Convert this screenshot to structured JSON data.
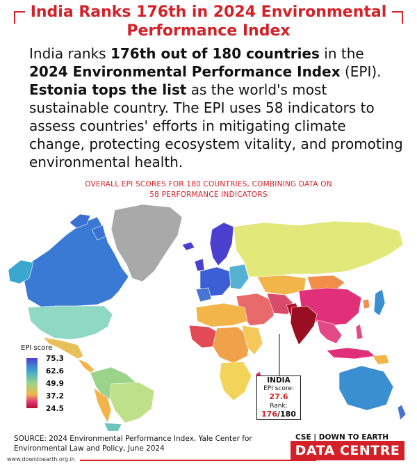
{
  "title": {
    "line1": "India Ranks 176th in 2024 Environmental",
    "line2": "Performance Index"
  },
  "intro": {
    "p1": "India ranks ",
    "b1": "176th out of 180 countries",
    "p2": " in the ",
    "b2": "2024 Environmental Performance Index",
    "p3": " (EPI). ",
    "b3": "Estonia tops the list",
    "p4": " as the world's most sustainable country. The EPI uses 58 indicators to assess countries' efforts in mitigating climate change, protecting ecosystem vitality, and promoting environmental health."
  },
  "map_subtitle": {
    "line1": "OVERALL EPI SCORES FOR 180 COUNTRIES, COMBINING DATA ON",
    "line2": "58 PERFORMANCE INDICATORS"
  },
  "legend": {
    "title": "EPI score",
    "ticks": [
      "75.3",
      "62.6",
      "49.9",
      "37.2",
      "24.5"
    ]
  },
  "callout": {
    "country": "INDIA",
    "score_label": "EPI score: ",
    "score_value": "27.6",
    "rank_label": "Rank:",
    "rank_value": "176",
    "rank_total": "/180"
  },
  "source": {
    "line1": "SOURCE: 2024 Environmental Performance Index, Yale Center for",
    "line2": "Environmental Law and Policy, June 2024"
  },
  "footer": {
    "url": "www.downtoearth.org.in",
    "brand_top": "CSE | DOWN TO EARTH",
    "brand_main": "DATA CENTRE"
  },
  "colors": {
    "accent": "#d42027",
    "high": "#4b3fd0",
    "mid_high": "#3aa7cf",
    "mid": "#9bd38a",
    "mid_low": "#f2b54a",
    "low": "#e0307a",
    "lowest": "#b0122a",
    "no_data": "#a9a9a9"
  }
}
